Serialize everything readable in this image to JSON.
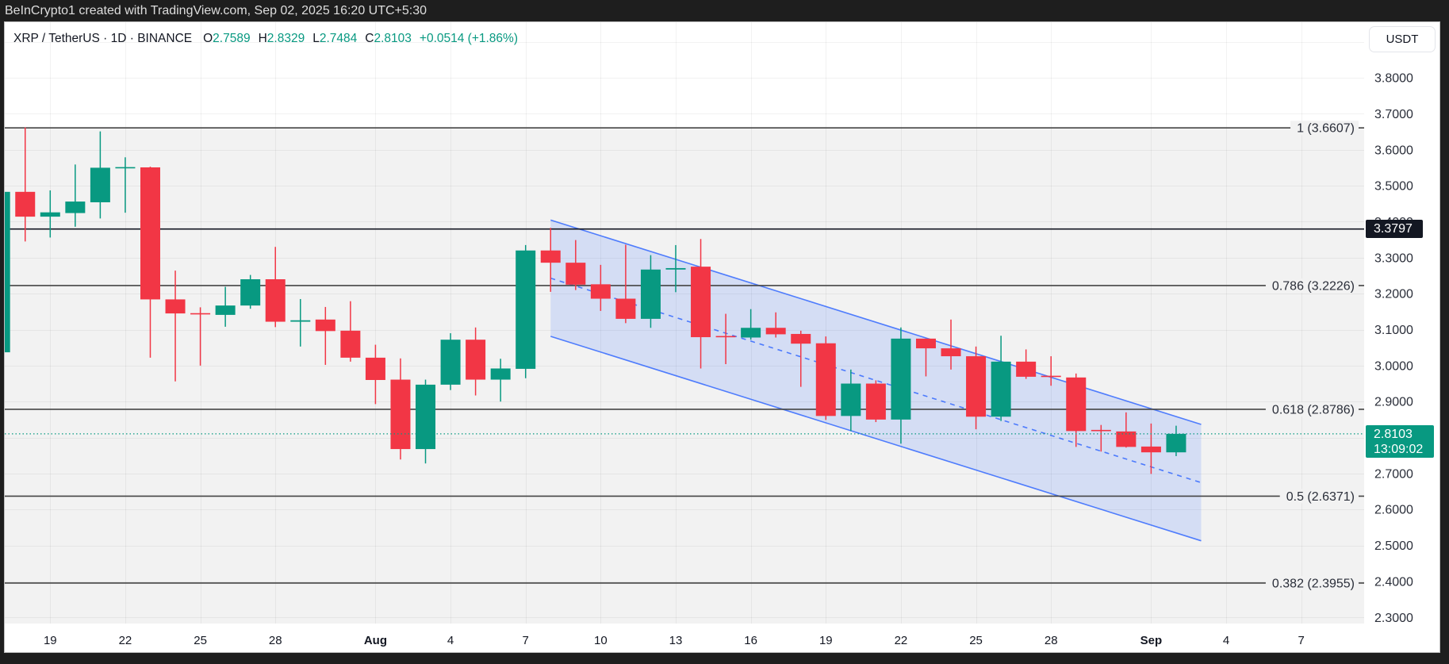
{
  "header": {
    "title": "BeInCrypto1 created with TradingView.com, Sep 02, 2025 16:20 UTC+5:30"
  },
  "legend": {
    "symbol": "XRP / TetherUS · 1D · BINANCE",
    "open_label": "O",
    "open": "2.7589",
    "high_label": "H",
    "high": "2.8329",
    "low_label": "L",
    "low": "2.7484",
    "close_label": "C",
    "close": "2.8103",
    "change": "+0.0514 (+1.86%)"
  },
  "price_axis": {
    "currency_button": "USDT",
    "ticks": [
      "3.8000",
      "3.7000",
      "3.6000",
      "3.5000",
      "3.4000",
      "3.3000",
      "3.2000",
      "3.1000",
      "3.0000",
      "2.9000",
      "2.8000",
      "2.7000",
      "2.6000",
      "2.5000",
      "2.4000",
      "2.3000"
    ],
    "horizontal_line_label": "3.3797",
    "last_price_label": "2.8103",
    "countdown": "13:09:02"
  },
  "time_axis": {
    "ticks": [
      {
        "label": "19",
        "date": "Jul 19",
        "bold": false
      },
      {
        "label": "22",
        "date": "Jul 22",
        "bold": false
      },
      {
        "label": "25",
        "date": "Jul 25",
        "bold": false
      },
      {
        "label": "28",
        "date": "Jul 28",
        "bold": false
      },
      {
        "label": "Aug",
        "date": "Aug 1",
        "bold": true
      },
      {
        "label": "4",
        "date": "Aug 4",
        "bold": false
      },
      {
        "label": "7",
        "date": "Aug 7",
        "bold": false
      },
      {
        "label": "10",
        "date": "Aug 10",
        "bold": false
      },
      {
        "label": "13",
        "date": "Aug 13",
        "bold": false
      },
      {
        "label": "16",
        "date": "Aug 16",
        "bold": false
      },
      {
        "label": "19",
        "date": "Aug 19",
        "bold": false
      },
      {
        "label": "22",
        "date": "Aug 22",
        "bold": false
      },
      {
        "label": "25",
        "date": "Aug 25",
        "bold": false
      },
      {
        "label": "28",
        "date": "Aug 28",
        "bold": false
      },
      {
        "label": "Sep",
        "date": "Sep 1",
        "bold": true
      },
      {
        "label": "4",
        "date": "Sep 4",
        "bold": false
      },
      {
        "label": "7",
        "date": "Sep 7",
        "bold": false
      }
    ]
  },
  "colors": {
    "up": "#089981",
    "down": "#F23645",
    "channel": "#2962FF",
    "fib_line": "#454545",
    "fib_fill": "#f2f2f2",
    "fib_label": "#2a2e39",
    "hline": "#131722",
    "axis_text": "#2a2e39"
  },
  "chart_data": {
    "type": "candlestick",
    "title": "XRP / TetherUS · 1D · BINANCE",
    "xlabel": "",
    "ylabel": "USDT",
    "ylim": [
      2.283,
      3.9545
    ],
    "grid": true,
    "categories": [
      "Jul 17",
      "Jul 18",
      "Jul 19",
      "Jul 20",
      "Jul 21",
      "Jul 22",
      "Jul 23",
      "Jul 24",
      "Jul 25",
      "Jul 26",
      "Jul 27",
      "Jul 28",
      "Jul 29",
      "Jul 30",
      "Jul 31",
      "Aug 1",
      "Aug 2",
      "Aug 3",
      "Aug 4",
      "Aug 5",
      "Aug 6",
      "Aug 7",
      "Aug 8",
      "Aug 9",
      "Aug 10",
      "Aug 11",
      "Aug 12",
      "Aug 13",
      "Aug 14",
      "Aug 15",
      "Aug 16",
      "Aug 17",
      "Aug 18",
      "Aug 19",
      "Aug 20",
      "Aug 21",
      "Aug 22",
      "Aug 23",
      "Aug 24",
      "Aug 25",
      "Aug 26",
      "Aug 27",
      "Aug 28",
      "Aug 29",
      "Aug 30",
      "Aug 31",
      "Sep 1",
      "Sep 2"
    ],
    "series": [
      {
        "name": "XRP/USDT",
        "ohlc_fields": [
          "open",
          "high",
          "low",
          "close"
        ],
        "ohlc": [
          [
            3.037,
            3.483,
            3.037,
            3.483
          ],
          [
            3.483,
            3.662,
            3.345,
            3.414
          ],
          [
            3.414,
            3.487,
            3.356,
            3.426
          ],
          [
            3.424,
            3.559,
            3.386,
            3.456
          ],
          [
            3.454,
            3.651,
            3.409,
            3.55
          ],
          [
            3.549,
            3.579,
            3.425,
            3.551
          ],
          [
            3.551,
            3.553,
            3.022,
            3.184
          ],
          [
            3.184,
            3.264,
            2.956,
            3.145
          ],
          [
            3.145,
            3.162,
            3.0,
            3.143
          ],
          [
            3.141,
            3.219,
            3.108,
            3.167
          ],
          [
            3.167,
            3.252,
            3.158,
            3.24
          ],
          [
            3.24,
            3.33,
            3.107,
            3.122
          ],
          [
            3.122,
            3.185,
            3.053,
            3.126
          ],
          [
            3.128,
            3.163,
            3.002,
            3.096
          ],
          [
            3.097,
            3.179,
            3.011,
            3.022
          ],
          [
            3.022,
            3.058,
            2.893,
            2.96
          ],
          [
            2.961,
            3.02,
            2.739,
            2.768
          ],
          [
            2.768,
            2.961,
            2.728,
            2.947
          ],
          [
            2.947,
            3.09,
            2.932,
            3.072
          ],
          [
            3.072,
            3.106,
            2.917,
            2.961
          ],
          [
            2.961,
            3.019,
            2.9,
            2.992
          ],
          [
            2.991,
            3.335,
            2.965,
            3.32
          ],
          [
            3.32,
            3.383,
            3.205,
            3.286
          ],
          [
            3.286,
            3.349,
            3.21,
            3.225
          ],
          [
            3.226,
            3.28,
            3.152,
            3.186
          ],
          [
            3.186,
            3.336,
            3.118,
            3.13
          ],
          [
            3.13,
            3.307,
            3.105,
            3.267
          ],
          [
            3.267,
            3.335,
            3.204,
            3.271
          ],
          [
            3.275,
            3.352,
            2.992,
            3.079
          ],
          [
            3.081,
            3.144,
            3.004,
            3.08
          ],
          [
            3.078,
            3.157,
            3.072,
            3.105
          ],
          [
            3.105,
            3.148,
            3.078,
            3.087
          ],
          [
            3.088,
            3.097,
            2.941,
            3.061
          ],
          [
            3.062,
            3.081,
            2.849,
            2.86
          ],
          [
            2.86,
            2.989,
            2.818,
            2.95
          ],
          [
            2.95,
            2.959,
            2.843,
            2.85
          ],
          [
            2.85,
            3.106,
            2.783,
            3.075
          ],
          [
            3.075,
            3.075,
            2.97,
            3.048
          ],
          [
            3.048,
            3.128,
            2.989,
            3.026
          ],
          [
            3.026,
            3.053,
            2.823,
            2.858
          ],
          [
            2.858,
            3.083,
            2.846,
            3.011
          ],
          [
            3.011,
            3.045,
            2.963,
            2.969
          ],
          [
            2.971,
            3.026,
            2.944,
            2.969
          ],
          [
            2.967,
            2.978,
            2.774,
            2.818
          ],
          [
            2.82,
            2.835,
            2.761,
            2.819
          ],
          [
            2.817,
            2.87,
            2.772,
            2.774
          ],
          [
            2.775,
            2.839,
            2.699,
            2.7589
          ],
          [
            2.7589,
            2.8329,
            2.7484,
            2.8103
          ]
        ]
      }
    ],
    "fibonacci_retracement": [
      {
        "level": "1",
        "price": 3.6607,
        "label": "1 (3.6607)"
      },
      {
        "level": "0.786",
        "price": 3.2226,
        "label": "0.786 (3.2226)"
      },
      {
        "level": "0.618",
        "price": 2.8786,
        "label": "0.618 (2.8786)"
      },
      {
        "level": "0.5",
        "price": 2.6371,
        "label": "0.5 (2.6371)"
      },
      {
        "level": "0.382",
        "price": 2.3955,
        "label": "0.382 (2.3955)"
      }
    ],
    "horizontal_lines": [
      {
        "price": 3.3797,
        "label": "3.3797"
      }
    ],
    "descending_channel": {
      "start": "Aug 8",
      "end": "Sep 3",
      "upper": [
        3.4047,
        2.8365
      ],
      "lower": [
        3.0813,
        2.513
      ],
      "middle_dashed": true
    },
    "last_price": 2.8103
  }
}
